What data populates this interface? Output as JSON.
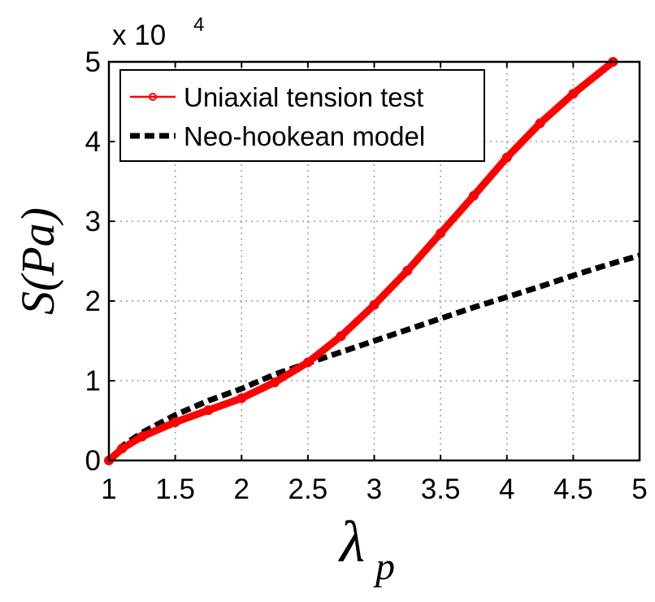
{
  "chart_data": {
    "type": "line",
    "xlabel": "λ",
    "xlabel_sub": "p",
    "ylabel": "S(Pa)",
    "y_scale_label": "x 10",
    "y_scale_exp": "4",
    "xlim": [
      1,
      5
    ],
    "ylim": [
      0,
      50000
    ],
    "x_ticks": [
      "1",
      "1.5",
      "2",
      "2.5",
      "3",
      "3.5",
      "4",
      "4.5",
      "5"
    ],
    "y_ticks": [
      "0",
      "1",
      "2",
      "3",
      "4",
      "5"
    ],
    "grid": true,
    "legend_position": "top-left",
    "series": [
      {
        "name": "Uniaxial tension test",
        "color": "#ff0000",
        "style": "solid-circle-markers",
        "x": [
          1.0,
          1.1,
          1.25,
          1.5,
          1.75,
          2.0,
          2.25,
          2.5,
          2.75,
          3.0,
          3.25,
          3.5,
          3.75,
          4.0,
          4.25,
          4.5,
          4.8
        ],
        "y": [
          0,
          1500,
          3000,
          4800,
          6300,
          7800,
          9800,
          12300,
          15600,
          19500,
          23800,
          28500,
          33200,
          38000,
          42300,
          46000,
          50000
        ]
      },
      {
        "name": "Neo-hookean model",
        "color": "#000000",
        "style": "dashed",
        "x": [
          1.0,
          1.1,
          1.25,
          1.5,
          1.75,
          2.0,
          2.25,
          2.5,
          2.75,
          3.0,
          3.25,
          3.5,
          3.75,
          4.0,
          4.25,
          4.5,
          4.75,
          5.0
        ],
        "y": [
          0,
          1800,
          3500,
          5700,
          7500,
          9000,
          10800,
          12200,
          13600,
          15000,
          16400,
          17800,
          19200,
          20500,
          21800,
          23200,
          24500,
          25700
        ]
      }
    ]
  }
}
